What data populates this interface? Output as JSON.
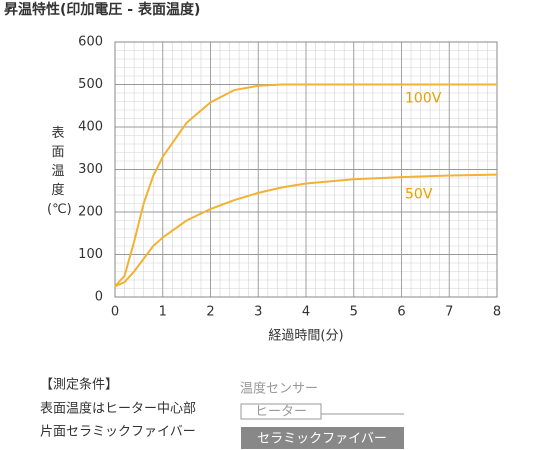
{
  "chart_data": {
    "type": "line",
    "title": "昇温特性(印加電圧 - 表面温度)",
    "x_label": "経過時間(分)",
    "y_label": "表面温度(℃)",
    "x": [
      0,
      0.2,
      0.4,
      0.6,
      0.8,
      1,
      1.5,
      2,
      2.5,
      3,
      3.5,
      4,
      5,
      6,
      7,
      8
    ],
    "series": [
      {
        "name": "100V",
        "color": "#f2b233",
        "values": [
          25,
          50,
          130,
          220,
          285,
          330,
          410,
          458,
          487,
          497,
          500,
          500,
          500,
          500,
          500,
          500
        ]
      },
      {
        "name": "50V",
        "color": "#f2b233",
        "values": [
          25,
          35,
          60,
          90,
          120,
          140,
          180,
          207,
          228,
          245,
          258,
          267,
          277,
          282,
          286,
          288
        ]
      }
    ],
    "xlim": [
      0,
      8
    ],
    "xticks": [
      0,
      1,
      2,
      3,
      4,
      5,
      6,
      7,
      8
    ],
    "ylim": [
      0,
      600
    ],
    "yticks": [
      0,
      100,
      200,
      300,
      400,
      500,
      600
    ],
    "grid": true
  },
  "conditions": {
    "heading": "【測定条件】",
    "lines": [
      "表面温度はヒーター中心部",
      "片面セラミックファイバー"
    ],
    "diagram": {
      "sensor": "温度センサー",
      "heater": "ヒーター",
      "fiber": "セラミックファイバー"
    }
  }
}
